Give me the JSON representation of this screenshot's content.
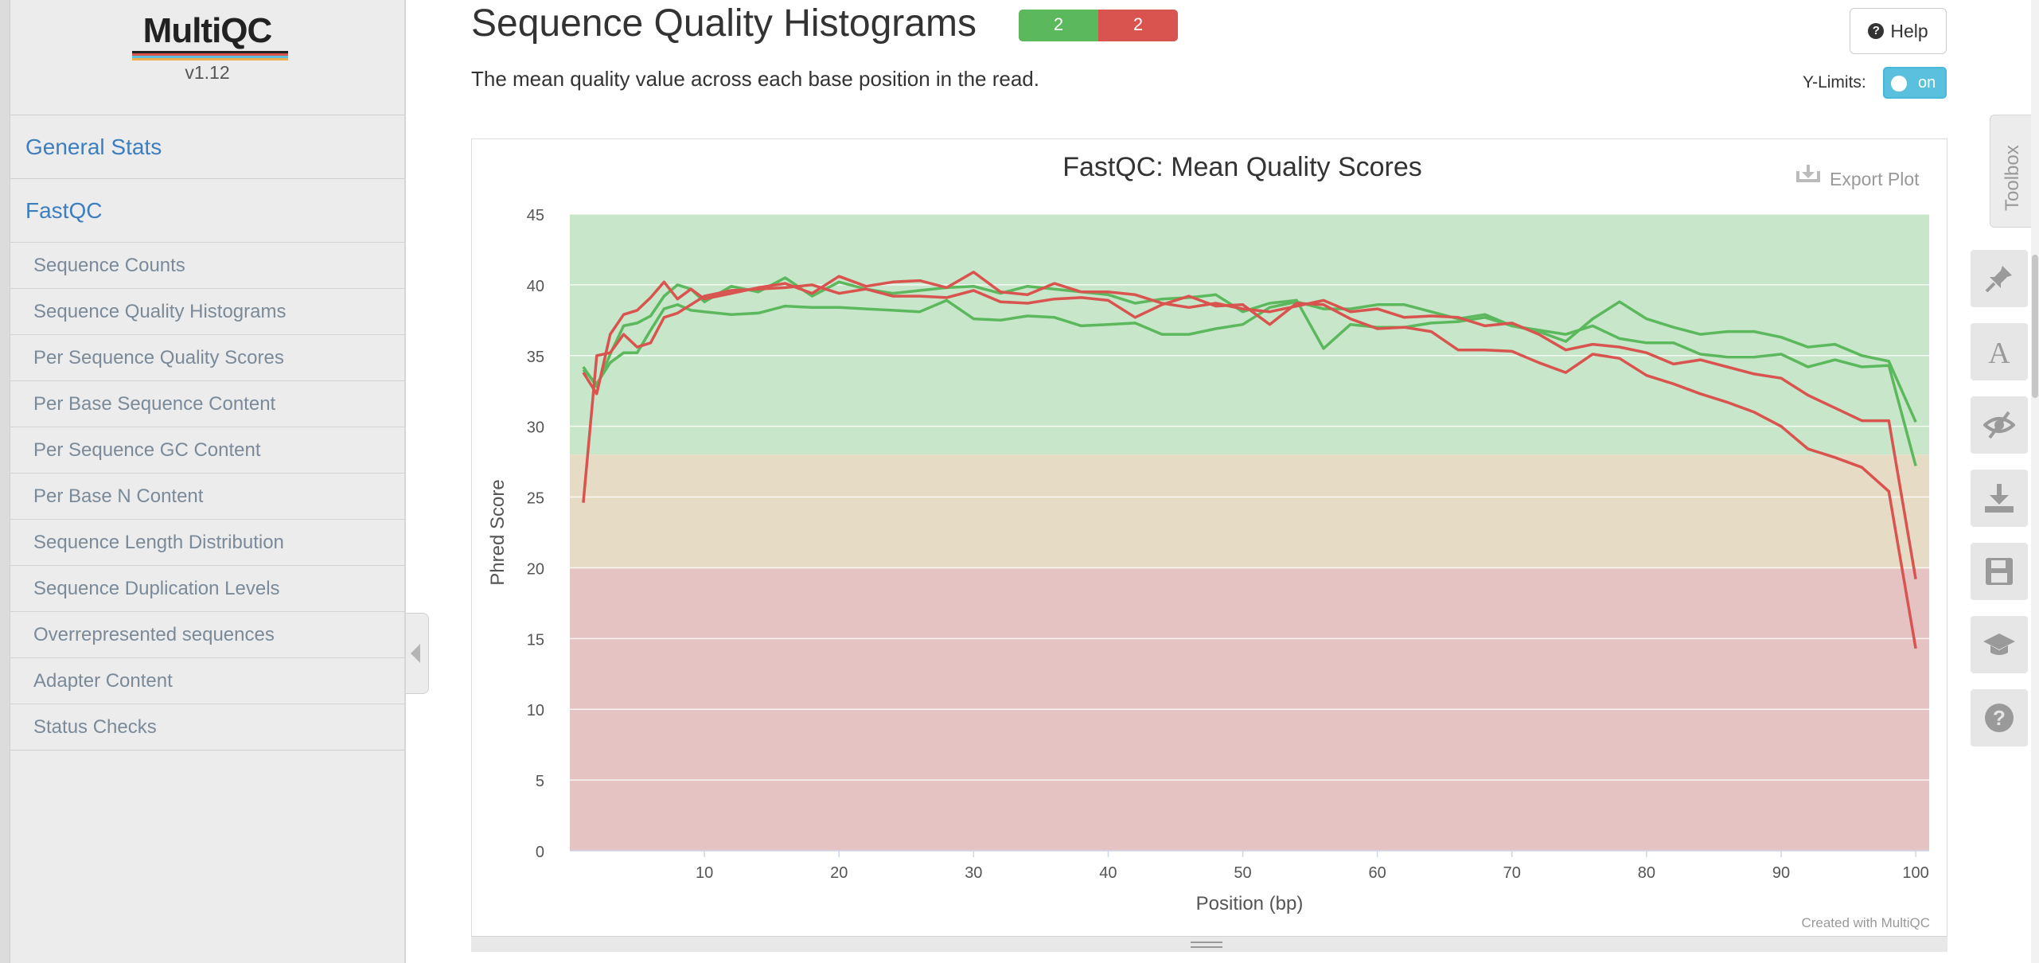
{
  "sidebar": {
    "logo": "MultiQC",
    "version": "v1.12",
    "items": [
      {
        "label": "General Stats"
      },
      {
        "label": "FastQC"
      }
    ],
    "subitems": [
      {
        "label": "Sequence Counts"
      },
      {
        "label": "Sequence Quality Histograms"
      },
      {
        "label": "Per Sequence Quality Scores"
      },
      {
        "label": "Per Base Sequence Content"
      },
      {
        "label": "Per Sequence GC Content"
      },
      {
        "label": "Per Base N Content"
      },
      {
        "label": "Sequence Length Distribution"
      },
      {
        "label": "Sequence Duplication Levels"
      },
      {
        "label": "Overrepresented sequences"
      },
      {
        "label": "Adapter Content"
      },
      {
        "label": "Status Checks"
      }
    ]
  },
  "section": {
    "title": "Sequence Quality Histograms",
    "status_pass": "2",
    "status_fail": "2",
    "description": "The mean quality value across each base position in the read.",
    "help_label": "Help",
    "ylimits_label": "Y-Limits:",
    "ylimits_toggle": "on"
  },
  "plot": {
    "export_label": "Export Plot",
    "credit": "Created with MultiQC"
  },
  "toolbox": {
    "label": "Toolbox",
    "icons": [
      "pin-icon",
      "font-icon",
      "eye-slash-icon",
      "download-icon",
      "save-icon",
      "graduation-cap-icon",
      "help-icon"
    ]
  },
  "colors": {
    "pass": "#5cb85c",
    "fail": "#d9534f",
    "band_good": "#c8e6c9",
    "band_warn": "#e6dcc5",
    "band_bad": "#e6c3c3",
    "link": "#3d7ebf"
  },
  "chart_data": {
    "type": "line",
    "title": "FastQC: Mean Quality Scores",
    "xlabel": "Position (bp)",
    "ylabel": "Phred Score",
    "xlim": [
      0,
      101
    ],
    "ylim": [
      0,
      45
    ],
    "xticks": [
      10,
      20,
      30,
      40,
      50,
      60,
      70,
      80,
      90,
      100
    ],
    "yticks": [
      0,
      5,
      10,
      15,
      20,
      25,
      30,
      35,
      40,
      45
    ],
    "bands": [
      {
        "from": 28,
        "to": 45,
        "color": "#c8e6c9"
      },
      {
        "from": 20,
        "to": 28,
        "color": "#e6dcc5"
      },
      {
        "from": 0,
        "to": 20,
        "color": "#e6c3c3"
      }
    ],
    "series": [
      {
        "color": "#5cb85c",
        "points": [
          [
            1,
            34
          ],
          [
            2,
            33
          ],
          [
            3,
            34.5
          ],
          [
            4,
            35.2
          ],
          [
            5,
            35.2
          ],
          [
            6,
            36.8
          ],
          [
            7,
            38.3
          ],
          [
            8,
            38.6
          ],
          [
            9,
            38.2
          ],
          [
            10,
            38.1
          ],
          [
            12,
            37.9
          ],
          [
            14,
            38
          ],
          [
            16,
            38.5
          ],
          [
            18,
            38.4
          ],
          [
            20,
            38.4
          ],
          [
            22,
            38.3
          ],
          [
            24,
            38.2
          ],
          [
            26,
            38.1
          ],
          [
            28,
            38.9
          ],
          [
            30,
            37.6
          ],
          [
            32,
            37.5
          ],
          [
            34,
            37.8
          ],
          [
            36,
            37.7
          ],
          [
            38,
            37.1
          ],
          [
            40,
            37.2
          ],
          [
            42,
            37.3
          ],
          [
            44,
            36.5
          ],
          [
            46,
            36.5
          ],
          [
            48,
            36.9
          ],
          [
            50,
            37.2
          ],
          [
            52,
            38.4
          ],
          [
            54,
            38.8
          ],
          [
            56,
            38.3
          ],
          [
            58,
            38.3
          ],
          [
            60,
            38.6
          ],
          [
            62,
            38.6
          ],
          [
            64,
            38.1
          ],
          [
            66,
            37.6
          ],
          [
            68,
            37.9
          ],
          [
            70,
            37.1
          ],
          [
            72,
            36.8
          ],
          [
            74,
            36.5
          ],
          [
            76,
            37.1
          ],
          [
            78,
            36.2
          ],
          [
            80,
            35.9
          ],
          [
            82,
            35.9
          ],
          [
            84,
            35.1
          ],
          [
            86,
            34.9
          ],
          [
            88,
            34.9
          ],
          [
            90,
            35.1
          ],
          [
            92,
            34.2
          ],
          [
            94,
            34.7
          ],
          [
            96,
            34.2
          ],
          [
            98,
            34.3
          ],
          [
            100,
            27.2
          ]
        ]
      },
      {
        "color": "#5cb85c",
        "points": [
          [
            1,
            34.2
          ],
          [
            2,
            32.8
          ],
          [
            3,
            35.1
          ],
          [
            4,
            37.1
          ],
          [
            5,
            37.3
          ],
          [
            6,
            37.8
          ],
          [
            7,
            39.2
          ],
          [
            8,
            40
          ],
          [
            9,
            39.7
          ],
          [
            10,
            38.8
          ],
          [
            12,
            39.9
          ],
          [
            14,
            39.5
          ],
          [
            16,
            40.5
          ],
          [
            18,
            39.2
          ],
          [
            20,
            40.2
          ],
          [
            22,
            39.7
          ],
          [
            24,
            39.4
          ],
          [
            26,
            39.6
          ],
          [
            28,
            39.8
          ],
          [
            30,
            39.9
          ],
          [
            32,
            39.4
          ],
          [
            34,
            39.9
          ],
          [
            36,
            39.7
          ],
          [
            38,
            39.5
          ],
          [
            40,
            39.3
          ],
          [
            42,
            38.7
          ],
          [
            44,
            39
          ],
          [
            46,
            39.1
          ],
          [
            48,
            39.3
          ],
          [
            50,
            38.1
          ],
          [
            52,
            38.7
          ],
          [
            54,
            38.9
          ],
          [
            56,
            35.5
          ],
          [
            58,
            37.2
          ],
          [
            60,
            37
          ],
          [
            62,
            37
          ],
          [
            64,
            37.3
          ],
          [
            66,
            37.4
          ],
          [
            68,
            37.7
          ],
          [
            70,
            37.1
          ],
          [
            72,
            36.7
          ],
          [
            74,
            36
          ],
          [
            76,
            37.6
          ],
          [
            78,
            38.8
          ],
          [
            80,
            37.6
          ],
          [
            82,
            37
          ],
          [
            84,
            36.5
          ],
          [
            86,
            36.7
          ],
          [
            88,
            36.7
          ],
          [
            90,
            36.3
          ],
          [
            92,
            35.6
          ],
          [
            94,
            35.8
          ],
          [
            96,
            35
          ],
          [
            98,
            34.6
          ],
          [
            100,
            30.3
          ]
        ]
      },
      {
        "color": "#d9534f",
        "points": [
          [
            1,
            24.6
          ],
          [
            2,
            35
          ],
          [
            3,
            35.2
          ],
          [
            4,
            36.5
          ],
          [
            5,
            35.6
          ],
          [
            6,
            35.9
          ],
          [
            7,
            37.7
          ],
          [
            8,
            38
          ],
          [
            9,
            38.6
          ],
          [
            10,
            39.2
          ],
          [
            12,
            39.6
          ],
          [
            14,
            39.7
          ],
          [
            16,
            39.8
          ],
          [
            18,
            40
          ],
          [
            20,
            39.4
          ],
          [
            22,
            39.7
          ],
          [
            24,
            39.2
          ],
          [
            26,
            39.2
          ],
          [
            28,
            39.1
          ],
          [
            30,
            39.6
          ],
          [
            32,
            38.8
          ],
          [
            34,
            38.7
          ],
          [
            36,
            39
          ],
          [
            38,
            39.1
          ],
          [
            40,
            38.9
          ],
          [
            42,
            37.7
          ],
          [
            44,
            38.6
          ],
          [
            46,
            39.2
          ],
          [
            48,
            38.5
          ],
          [
            50,
            38.6
          ],
          [
            52,
            37.2
          ],
          [
            54,
            38.7
          ],
          [
            56,
            38.6
          ],
          [
            58,
            37.6
          ],
          [
            60,
            36.9
          ],
          [
            62,
            37
          ],
          [
            64,
            36.7
          ],
          [
            66,
            35.4
          ],
          [
            68,
            35.4
          ],
          [
            70,
            35.3
          ],
          [
            72,
            34.5
          ],
          [
            74,
            33.8
          ],
          [
            76,
            35.1
          ],
          [
            78,
            34.8
          ],
          [
            80,
            33.6
          ],
          [
            82,
            33
          ],
          [
            84,
            32.3
          ],
          [
            86,
            31.7
          ],
          [
            88,
            31
          ],
          [
            90,
            30
          ],
          [
            92,
            28.4
          ],
          [
            94,
            27.8
          ],
          [
            96,
            27.1
          ],
          [
            98,
            25.4
          ],
          [
            100,
            14.3
          ]
        ]
      },
      {
        "color": "#d9534f",
        "points": [
          [
            1,
            33.8
          ],
          [
            2,
            32.3
          ],
          [
            3,
            36.5
          ],
          [
            4,
            37.9
          ],
          [
            5,
            38.2
          ],
          [
            6,
            39.1
          ],
          [
            7,
            40.2
          ],
          [
            8,
            39
          ],
          [
            9,
            39.7
          ],
          [
            10,
            39
          ],
          [
            12,
            39.4
          ],
          [
            14,
            39.8
          ],
          [
            16,
            40.1
          ],
          [
            18,
            39.4
          ],
          [
            20,
            40.6
          ],
          [
            22,
            39.9
          ],
          [
            24,
            40.2
          ],
          [
            26,
            40.3
          ],
          [
            28,
            39.8
          ],
          [
            30,
            40.9
          ],
          [
            32,
            39.5
          ],
          [
            34,
            39.3
          ],
          [
            36,
            40.1
          ],
          [
            38,
            39.5
          ],
          [
            40,
            39.5
          ],
          [
            42,
            39.3
          ],
          [
            44,
            38.7
          ],
          [
            46,
            38.4
          ],
          [
            48,
            38.7
          ],
          [
            50,
            38.3
          ],
          [
            52,
            38.1
          ],
          [
            54,
            38.5
          ],
          [
            56,
            38.9
          ],
          [
            58,
            38.1
          ],
          [
            60,
            38.3
          ],
          [
            62,
            37.7
          ],
          [
            64,
            37.8
          ],
          [
            66,
            37.7
          ],
          [
            68,
            37.1
          ],
          [
            70,
            37.3
          ],
          [
            72,
            36.5
          ],
          [
            74,
            35.4
          ],
          [
            76,
            35.8
          ],
          [
            78,
            35.6
          ],
          [
            80,
            35.2
          ],
          [
            82,
            34.4
          ],
          [
            84,
            34.7
          ],
          [
            86,
            34.2
          ],
          [
            88,
            33.7
          ],
          [
            90,
            33.4
          ],
          [
            92,
            32.2
          ],
          [
            94,
            31.3
          ],
          [
            96,
            30.4
          ],
          [
            98,
            30.4
          ],
          [
            100,
            19.2
          ]
        ]
      }
    ]
  }
}
